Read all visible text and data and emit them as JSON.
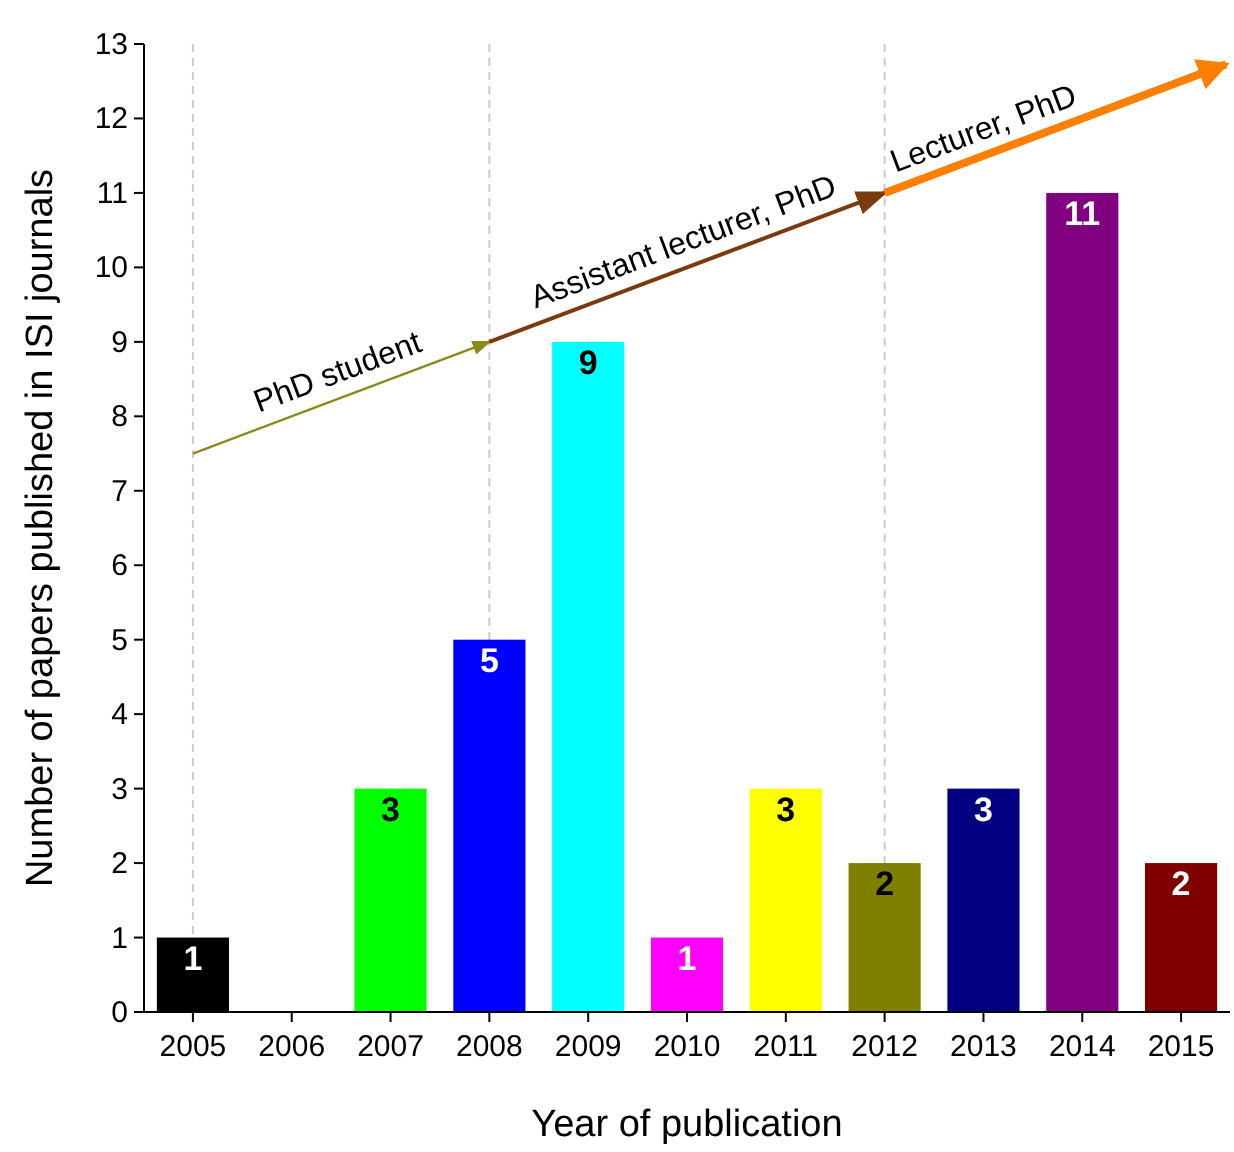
{
  "chart_data": {
    "type": "bar",
    "xlabel": "Year of publication",
    "ylabel": "Number of papers published in ISI journals",
    "categories": [
      "2005",
      "2006",
      "2007",
      "2008",
      "2009",
      "2010",
      "2011",
      "2012",
      "2013",
      "2014",
      "2015"
    ],
    "values": [
      1,
      0,
      3,
      5,
      9,
      1,
      3,
      2,
      3,
      11,
      2
    ],
    "colors": [
      "#000000",
      "#ffffff",
      "#00ff00",
      "#0000ff",
      "#00ffff",
      "#ff00ff",
      "#ffff00",
      "#808000",
      "#000080",
      "#800080",
      "#800000"
    ],
    "value_labels": [
      "1",
      null,
      "3",
      "5",
      "9",
      "1",
      "3",
      "2",
      "3",
      "11",
      "2"
    ],
    "ylim": [
      0,
      13
    ],
    "yticks": [
      0,
      1,
      2,
      3,
      4,
      5,
      6,
      7,
      8,
      9,
      10,
      11,
      12,
      13
    ],
    "grid": false,
    "ref_lines": [
      {
        "axis": "x",
        "value": "2005",
        "color": "#cccccc",
        "line_style": "dashed"
      },
      {
        "axis": "x",
        "value": "2008",
        "color": "#cccccc",
        "line_style": "dashed"
      },
      {
        "axis": "x",
        "value": "2012",
        "color": "#cccccc",
        "line_style": "dashed"
      }
    ],
    "annotations": [
      {
        "text": "PhD student",
        "x": "2005",
        "y": 7.5
      },
      {
        "text": "Assistant lecturer, PhD",
        "x": "2008",
        "y": 9
      },
      {
        "text": "Lecturer, PhD",
        "x": "2012",
        "y": 11
      }
    ]
  }
}
